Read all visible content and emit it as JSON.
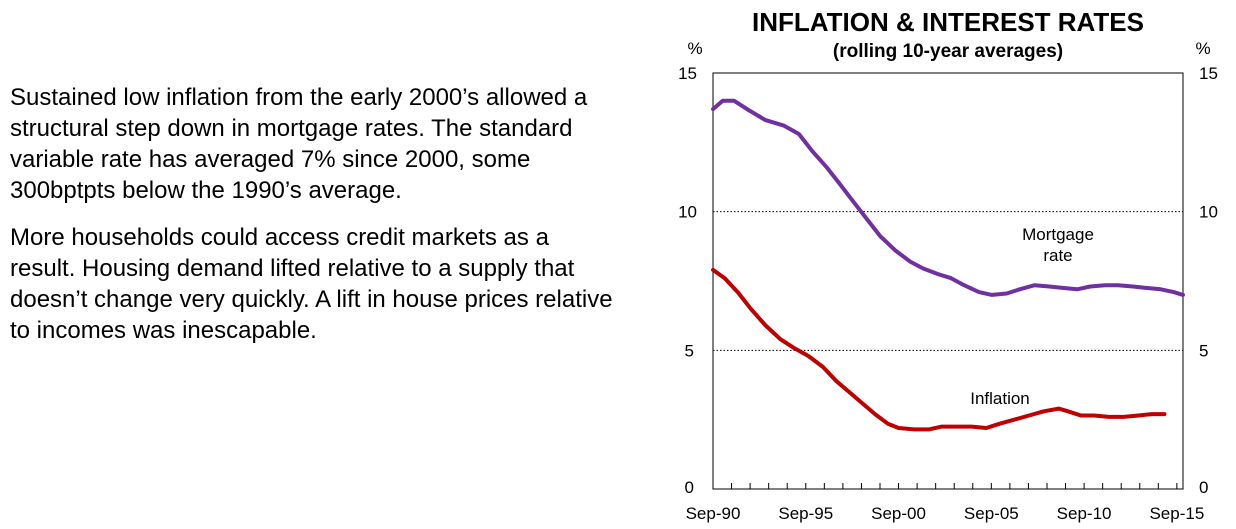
{
  "text": {
    "paragraph1": "Sustained low inflation from the early 2000’s allowed a structural step down in mortgage rates.  The standard variable rate has averaged 7% since 2000, some 300bptpts below the 1990’s average.",
    "paragraph2": "More households could access credit markets as a result.  Housing demand lifted relative to a supply that doesn’t change very quickly.  A lift in house prices relative to incomes was inescapable."
  },
  "chart_data": {
    "type": "line",
    "title": "INFLATION & INTEREST RATES",
    "subtitle": "(rolling 10-year averages)",
    "ylabel_left": "%",
    "ylabel_right": "%",
    "ylim": [
      0,
      15
    ],
    "xlim": [
      1990.67,
      2016.0
    ],
    "yticks": [
      0,
      5,
      10,
      15
    ],
    "grid_y": [
      5,
      10
    ],
    "xticks": [
      {
        "x": 1990.67,
        "label": "Sep-90"
      },
      {
        "x": 1995.67,
        "label": "Sep-95"
      },
      {
        "x": 2000.67,
        "label": "Sep-00"
      },
      {
        "x": 2005.67,
        "label": "Sep-05"
      },
      {
        "x": 2010.67,
        "label": "Sep-10"
      },
      {
        "x": 2015.67,
        "label": "Sep-15"
      }
    ],
    "series": [
      {
        "name": "Mortgage rate",
        "label_lines": [
          "Mortgage",
          "rate"
        ],
        "color": "#7030a0",
        "x": [
          1990.67,
          1991.2,
          1991.8,
          1992.5,
          1993.5,
          1994.5,
          1995.3,
          1996.0,
          1996.8,
          1997.5,
          1998.3,
          1999.0,
          1999.7,
          2000.5,
          2001.3,
          2002.0,
          2002.8,
          2003.5,
          2004.2,
          2005.0,
          2005.7,
          2006.5,
          2007.2,
          2008.0,
          2008.8,
          2009.5,
          2010.3,
          2011.0,
          2011.8,
          2012.5,
          2013.3,
          2014.0,
          2014.8,
          2015.5,
          2016.0
        ],
        "values": [
          13.7,
          14.0,
          14.0,
          13.7,
          13.3,
          13.1,
          12.8,
          12.2,
          11.6,
          11.0,
          10.3,
          9.7,
          9.1,
          8.6,
          8.2,
          7.95,
          7.75,
          7.6,
          7.35,
          7.1,
          7.0,
          7.05,
          7.2,
          7.35,
          7.3,
          7.25,
          7.2,
          7.3,
          7.35,
          7.35,
          7.3,
          7.25,
          7.2,
          7.1,
          7.0
        ]
      },
      {
        "name": "Inflation",
        "label_lines": [
          "Inflation"
        ],
        "color": "#c00000",
        "x": [
          1990.67,
          1991.3,
          1992.0,
          1992.7,
          1993.5,
          1994.3,
          1995.0,
          1995.8,
          1996.6,
          1997.3,
          1998.0,
          1998.7,
          1999.4,
          2000.1,
          2000.67,
          2001.5,
          2002.3,
          2003.0,
          2003.8,
          2004.6,
          2005.4,
          2006.1,
          2006.9,
          2007.7,
          2008.5,
          2009.3,
          2009.8,
          2010.5,
          2011.2,
          2012.0,
          2012.8,
          2013.6,
          2014.3,
          2015.0
        ],
        "values": [
          7.9,
          7.6,
          7.1,
          6.5,
          5.9,
          5.4,
          5.1,
          4.8,
          4.4,
          3.9,
          3.5,
          3.1,
          2.7,
          2.35,
          2.2,
          2.15,
          2.15,
          2.25,
          2.25,
          2.25,
          2.2,
          2.35,
          2.5,
          2.65,
          2.8,
          2.9,
          2.8,
          2.65,
          2.65,
          2.6,
          2.6,
          2.65,
          2.7,
          2.7
        ]
      }
    ]
  }
}
